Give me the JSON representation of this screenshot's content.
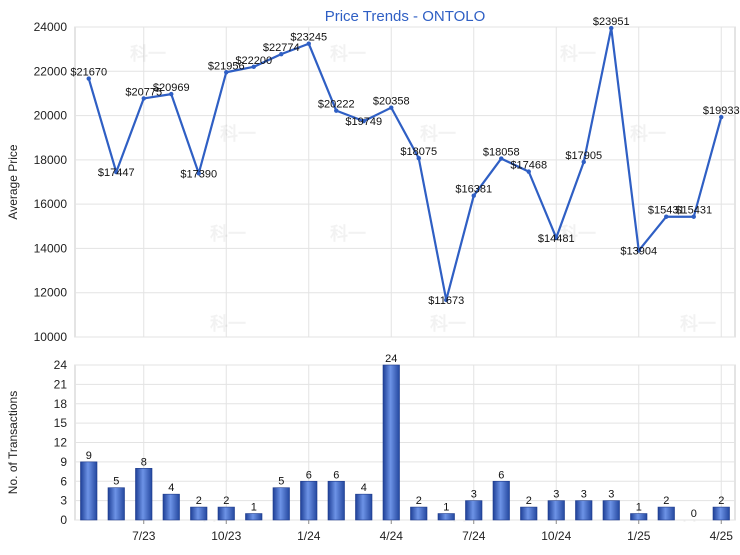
{
  "chart_data": [
    {
      "type": "line",
      "title": "Price Trends - ONTOLO",
      "ylabel": "Average Price",
      "ylim": [
        10000,
        24000
      ],
      "yticks": [
        10000,
        12000,
        14000,
        16000,
        18000,
        20000,
        22000,
        24000
      ],
      "grid": true,
      "series": [
        {
          "values": [
            21670,
            17447,
            20775,
            20969,
            17390,
            21956,
            22200,
            22774,
            23245,
            20222,
            19749,
            20358,
            18075,
            11673,
            16381,
            18058,
            17468,
            14481,
            17905,
            23951,
            13904,
            15431,
            15431,
            19933
          ],
          "labels": [
            "$21670",
            "$17447",
            "$20775",
            "$20969",
            "$17390",
            "$21956",
            "$22200",
            "$22774",
            "$23245",
            "$20222",
            "$19749",
            "$20358",
            "$18075",
            "$11673",
            "$16381",
            "$18058",
            "$17468",
            "$14481",
            "$17905",
            "$23951",
            "$13904",
            "$15431",
            "$15431",
            "$19933"
          ],
          "color": "#2f5fc4"
        }
      ]
    },
    {
      "type": "bar",
      "ylabel": "No. of Transactions",
      "ylim": [
        0,
        24
      ],
      "yticks": [
        0,
        3,
        6,
        9,
        12,
        15,
        18,
        21,
        24
      ],
      "grid": true,
      "xtick_labels": [
        "7/23",
        "10/23",
        "1/24",
        "4/24",
        "7/24",
        "10/24",
        "1/25",
        "4/25"
      ],
      "values": [
        9,
        5,
        8,
        4,
        2,
        2,
        1,
        5,
        6,
        6,
        4,
        24,
        2,
        1,
        3,
        6,
        2,
        3,
        3,
        3,
        1,
        2,
        0,
        2
      ],
      "color": "#3a66cc"
    }
  ],
  "watermark": "科一"
}
